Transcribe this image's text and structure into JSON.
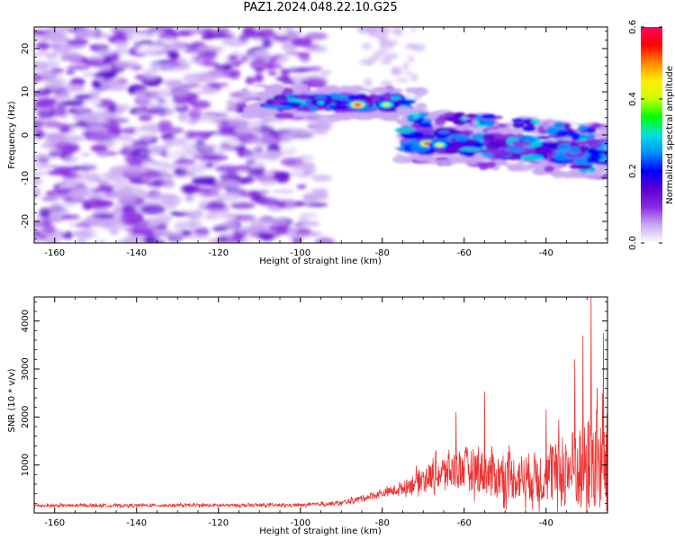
{
  "title": "PAZ1.2024.048.22.10.G25",
  "chart_data": [
    {
      "type": "heatmap",
      "xlabel": "Height of straight line (km)",
      "ylabel": "Frequency (Hz)",
      "xlim": [
        -165,
        -25
      ],
      "ylim": [
        -25,
        25
      ],
      "x_ticks": [
        -160,
        -140,
        -120,
        -100,
        -80,
        -60,
        -40
      ],
      "y_ticks": [
        -20,
        -10,
        0,
        10,
        20
      ],
      "colorbar": {
        "label": "Normalized spectral amplitude",
        "range": [
          0,
          0.6
        ],
        "ticks": [
          "0.0",
          "0.2",
          "0.4",
          "0.6"
        ],
        "colors": [
          "#ffffff",
          "#c9a8f2",
          "#8a2be2",
          "#5a00d0",
          "#0000ff",
          "#0090ff",
          "#00e0e0",
          "#00ff00",
          "#c8ff00",
          "#ffee00",
          "#ff8800",
          "#ff0000",
          "#ff0066"
        ]
      },
      "features": {
        "noise_region_x": [
          -165,
          -92
        ],
        "upper_band": {
          "x": [
            -113,
            -70
          ],
          "frequency_hz": 7.5,
          "peak": {
            "x": -86,
            "frequency_hz": 7,
            "value": 0.6
          }
        },
        "lower_band": {
          "x": [
            -75,
            -25
          ],
          "frequency_start_hz": -1,
          "frequency_end_hz": -4
        },
        "lower_peak": {
          "x": -69,
          "frequency_hz": -2,
          "value": 0.58
        },
        "trace_points": [
          [
            -71,
            3.5
          ],
          [
            -62,
            4.0
          ],
          [
            -56,
            3.5
          ],
          [
            -45,
            2.5
          ],
          [
            -37,
            1.5
          ],
          [
            -31,
            0.5
          ],
          [
            -31,
            -7.5
          ],
          [
            -27,
            -5.0
          ]
        ]
      }
    },
    {
      "type": "line",
      "xlabel": "Height of straight line (km)",
      "ylabel": "SNR (10 * v/v)",
      "xlim": [
        -165,
        -25
      ],
      "ylim": [
        0,
        4500
      ],
      "x_ticks": [
        -160,
        -140,
        -120,
        -100,
        -80,
        -60,
        -40
      ],
      "y_ticks": [
        1000,
        2000,
        3000,
        4000
      ],
      "color": "#ee3333",
      "series": [
        {
          "envelope": [
            {
              "x": -165,
              "baseline": 150,
              "amplitude": 60
            },
            {
              "x": -100,
              "baseline": 160,
              "amplitude": 60
            },
            {
              "x": -90,
              "baseline": 200,
              "amplitude": 90
            },
            {
              "x": -80,
              "baseline": 400,
              "amplitude": 150
            },
            {
              "x": -75,
              "baseline": 500,
              "amplitude": 250
            },
            {
              "x": -70,
              "baseline": 700,
              "amplitude": 500
            },
            {
              "x": -60,
              "baseline": 900,
              "amplitude": 900
            },
            {
              "x": -50,
              "baseline": 700,
              "amplitude": 900
            },
            {
              "x": -40,
              "baseline": 700,
              "amplitude": 1100
            },
            {
              "x": -30,
              "baseline": 900,
              "amplitude": 2000
            },
            {
              "x": -25,
              "baseline": 1000,
              "amplitude": 2000
            }
          ],
          "peaks": [
            {
              "x": -55,
              "value": 2530
            },
            {
              "x": -62,
              "value": 2100
            },
            {
              "x": -40,
              "value": 2150
            },
            {
              "x": -33,
              "value": 3200
            },
            {
              "x": -31,
              "value": 3700
            },
            {
              "x": -29,
              "value": 4500
            },
            {
              "x": -26,
              "value": 3750
            }
          ]
        }
      ]
    }
  ]
}
